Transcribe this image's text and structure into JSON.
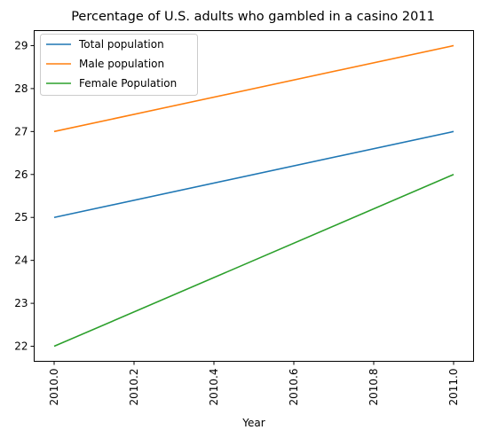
{
  "chart_data": {
    "type": "line",
    "title": "Percentage of U.S. adults who gambled in a casino 2011",
    "xlabel": "Year",
    "ylabel": "",
    "x": [
      2010,
      2011
    ],
    "xlim": [
      2009.95,
      2011.05
    ],
    "ylim": [
      21.65,
      29.35
    ],
    "xticks": [
      2010.0,
      2010.2,
      2010.4,
      2010.6,
      2010.8,
      2011.0
    ],
    "xtick_labels": [
      "2010.0",
      "2010.2",
      "2010.4",
      "2010.6",
      "2010.8",
      "2011.0"
    ],
    "yticks": [
      22,
      23,
      24,
      25,
      26,
      27,
      28,
      29
    ],
    "ytick_labels": [
      "22",
      "23",
      "24",
      "25",
      "26",
      "27",
      "28",
      "29"
    ],
    "grid": false,
    "legend_position": "top-left",
    "series": [
      {
        "name": "Total population",
        "values": [
          25,
          27
        ],
        "color": "#1f77b4"
      },
      {
        "name": "Male population",
        "values": [
          27,
          29
        ],
        "color": "#ff7f0e"
      },
      {
        "name": "Female Population",
        "values": [
          22,
          26
        ],
        "color": "#2ca02c"
      }
    ]
  }
}
